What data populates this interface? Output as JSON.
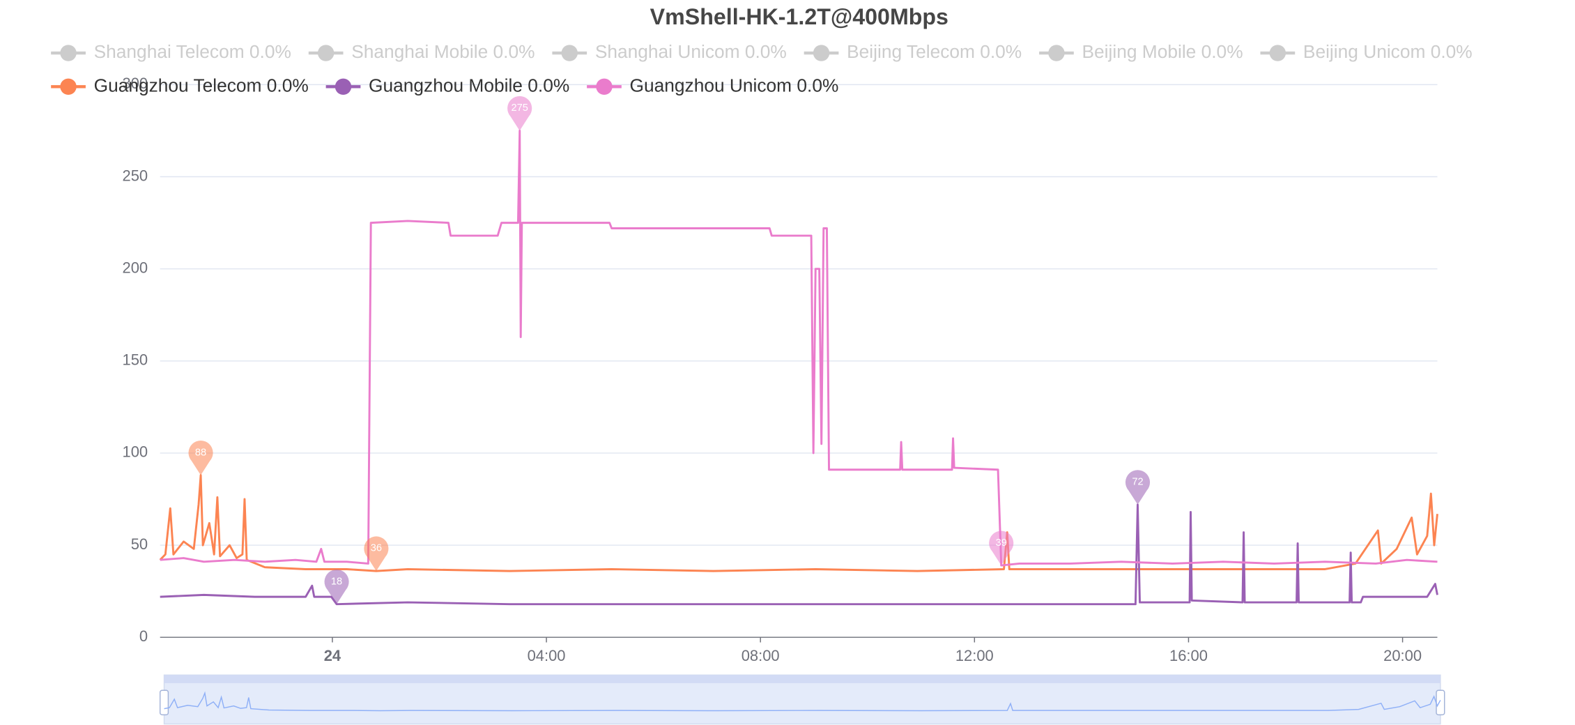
{
  "chart_data": {
    "type": "line",
    "title": "VmShell-HK-1.2T@400Mbps",
    "xlim": [
      20.78,
      44.65
    ],
    "xticks": [
      {
        "value": 24,
        "label": "24"
      },
      {
        "value": 28,
        "label": "04:00"
      },
      {
        "value": 32,
        "label": "08:00"
      },
      {
        "value": 36,
        "label": "12:00"
      },
      {
        "value": 40,
        "label": "16:00"
      },
      {
        "value": 44,
        "label": "20:00"
      }
    ],
    "ylim": [
      0,
      300
    ],
    "yticks": [
      0,
      50,
      100,
      150,
      200,
      250,
      300
    ],
    "grid": true,
    "series": [
      {
        "name": "Shanghai Telecom 0.0%",
        "color": "#cccccc",
        "active": false
      },
      {
        "name": "Shanghai Mobile 0.0%",
        "color": "#cccccc",
        "active": false
      },
      {
        "name": "Shanghai Unicom 0.0%",
        "color": "#cccccc",
        "active": false
      },
      {
        "name": "Beijing Telecom 0.0%",
        "color": "#cccccc",
        "active": false
      },
      {
        "name": "Beijing Mobile 0.0%",
        "color": "#cccccc",
        "active": false
      },
      {
        "name": "Beijing Unicom 0.0%",
        "color": "#cccccc",
        "active": false
      },
      {
        "name": "Guangzhou Telecom 0.0%",
        "color": "#fc8452",
        "active": true,
        "x": [
          20.78,
          20.88,
          20.97,
          21.03,
          21.22,
          21.41,
          21.5,
          21.54,
          21.58,
          21.7,
          21.79,
          21.85,
          21.9,
          22.08,
          22.21,
          22.32,
          22.36,
          22.4,
          22.74,
          23.5,
          24.27,
          24.82,
          25.41,
          27.31,
          29.22,
          31.12,
          33.03,
          34.93,
          36.55,
          36.61,
          36.65,
          38.74,
          40.65,
          42.55,
          43.12,
          43.54,
          43.6,
          43.89,
          44.17,
          44.27,
          44.46,
          44.53,
          44.59,
          44.65
        ],
        "values": [
          42,
          45,
          70,
          45,
          52,
          48,
          72,
          88,
          50,
          62,
          45,
          76,
          44,
          50,
          43,
          45,
          75,
          42,
          38,
          37,
          37,
          36,
          37,
          36,
          37,
          36,
          37,
          36,
          37,
          57,
          37,
          37,
          37,
          37,
          40,
          58,
          40,
          48,
          65,
          45,
          55,
          78,
          50,
          67
        ],
        "markers": [
          {
            "x": 21.54,
            "value": 88
          },
          {
            "x": 24.82,
            "value": 36
          }
        ]
      },
      {
        "name": "Guangzhou Mobile 0.0%",
        "color": "#9a60b4",
        "active": true,
        "x": [
          20.78,
          21.6,
          22.55,
          23.5,
          23.62,
          23.66,
          23.98,
          24.08,
          25.41,
          27.31,
          31.12,
          34.93,
          39.01,
          39.05,
          39.09,
          40.02,
          40.04,
          40.06,
          41.01,
          41.03,
          41.05,
          42.02,
          42.04,
          42.06,
          43.01,
          43.03,
          43.05,
          43.22,
          43.26,
          44.46,
          44.61,
          44.65
        ],
        "values": [
          22,
          23,
          22,
          22,
          28,
          22,
          22,
          18,
          19,
          18,
          18,
          18,
          18,
          72,
          19,
          19,
          68,
          20,
          19,
          57,
          19,
          19,
          51,
          19,
          19,
          46,
          19,
          19,
          22,
          22,
          29,
          23
        ],
        "markers": [
          {
            "x": 39.05,
            "value": 72
          },
          {
            "x": 24.08,
            "value": 18
          }
        ]
      },
      {
        "name": "Guangzhou Unicom 0.0%",
        "color": "#ea7ccc",
        "active": true,
        "x": [
          20.78,
          21.22,
          21.6,
          22.17,
          22.74,
          23.31,
          23.7,
          23.79,
          23.85,
          24.27,
          24.67,
          24.72,
          25.41,
          26.17,
          26.21,
          27.09,
          27.16,
          27.47,
          27.5,
          27.52,
          27.54,
          28.45,
          29.18,
          29.22,
          31.12,
          32.17,
          32.21,
          32.95,
          32.99,
          33.03,
          33.1,
          33.14,
          33.18,
          33.24,
          33.28,
          33.98,
          34.61,
          34.63,
          34.65,
          35.58,
          35.6,
          35.62,
          36.44,
          36.5,
          36.84,
          37.79,
          38.74,
          39.7,
          40.65,
          41.6,
          42.55,
          43.5,
          44.08,
          44.65
        ],
        "values": [
          42,
          43,
          41,
          42,
          41,
          42,
          41,
          48,
          41,
          41,
          40,
          225,
          226,
          225,
          218,
          218,
          225,
          225,
          275,
          163,
          225,
          225,
          225,
          222,
          222,
          222,
          218,
          218,
          100,
          200,
          200,
          105,
          222,
          222,
          91,
          91,
          91,
          106,
          91,
          91,
          108,
          92,
          91,
          39,
          40,
          40,
          41,
          40,
          41,
          40,
          41,
          40,
          42,
          41
        ],
        "markers": [
          {
            "x": 27.5,
            "value": 275
          },
          {
            "x": 36.5,
            "value": 39
          }
        ]
      }
    ]
  }
}
